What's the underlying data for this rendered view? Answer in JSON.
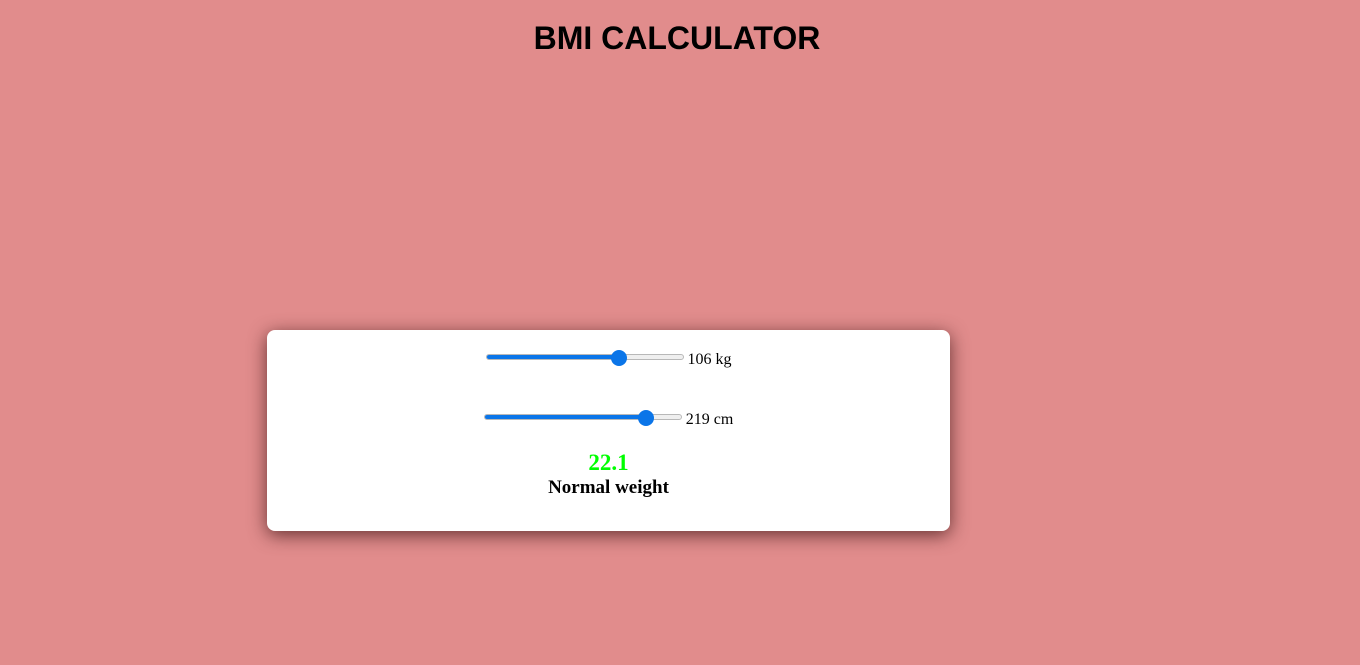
{
  "title": "BMI CALCULATOR",
  "colors": {
    "background": "#e18c8c",
    "slider_accent": "#0b75e8",
    "result": "#00ff00"
  },
  "weight": {
    "value_text": "106 kg",
    "level_percent": 69
  },
  "height": {
    "value_text": "219 cm",
    "level_percent": 85
  },
  "result": {
    "bmi": "22.1",
    "category": "Normal weight"
  }
}
